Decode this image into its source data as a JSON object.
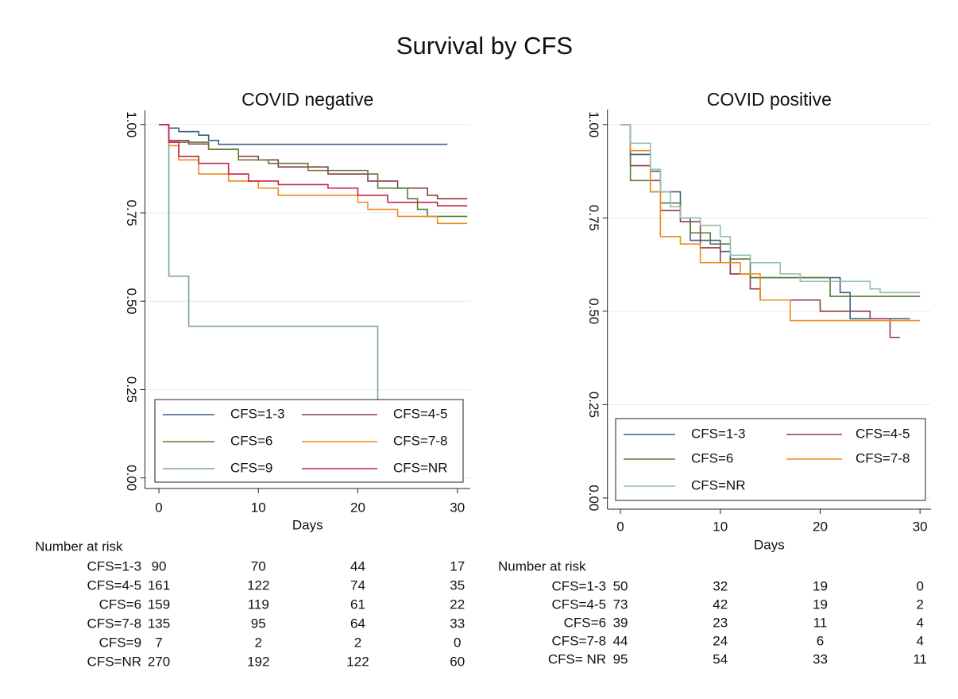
{
  "title": "Survival by CFS",
  "chart_data": [
    {
      "type": "line",
      "title": "COVID negative",
      "xlabel": "Days",
      "xlim": [
        -1.4,
        31.3
      ],
      "xticks": [
        0,
        10,
        20,
        30
      ],
      "ylim": [
        -0.03,
        1.04
      ],
      "yticks": [
        {
          "value": 0,
          "label": "0.00"
        },
        {
          "value": 0.25,
          "label": "0.25"
        },
        {
          "value": 0.5,
          "label": "0.50"
        },
        {
          "value": 0.75,
          "label": "0.75"
        },
        {
          "value": 1,
          "label": "1.00"
        }
      ],
      "grid": true,
      "legend": "bottom",
      "series": [
        {
          "name": "CFS=1-3",
          "color": "#3b5d85",
          "x": [
            0,
            1,
            1,
            2,
            2,
            4,
            4,
            5,
            5,
            6,
            6,
            29
          ],
          "values": [
            1,
            1,
            0.99,
            0.99,
            0.98,
            0.98,
            0.97,
            0.97,
            0.955,
            0.955,
            0.944,
            0.944
          ]
        },
        {
          "name": "CFS=4-5",
          "color": "#903a46",
          "x": [
            0,
            1,
            1,
            3,
            3,
            5,
            5,
            8,
            8,
            10,
            10,
            12,
            12,
            17,
            17,
            21,
            21,
            24,
            24,
            27,
            27,
            28,
            28,
            31
          ],
          "values": [
            1,
            1,
            0.955,
            0.955,
            0.945,
            0.945,
            0.93,
            0.93,
            0.91,
            0.91,
            0.9,
            0.9,
            0.88,
            0.88,
            0.86,
            0.86,
            0.84,
            0.84,
            0.82,
            0.82,
            0.8,
            0.8,
            0.79,
            0.79
          ]
        },
        {
          "name": "CFS=6",
          "color": "#5a7d36",
          "x": [
            0,
            1,
            1,
            5,
            5,
            8,
            8,
            11,
            11,
            15,
            15,
            21,
            21,
            22,
            22,
            25,
            25,
            26,
            26,
            27,
            27,
            31
          ],
          "values": [
            1,
            1,
            0.95,
            0.95,
            0.93,
            0.93,
            0.9,
            0.9,
            0.89,
            0.89,
            0.87,
            0.87,
            0.86,
            0.86,
            0.82,
            0.82,
            0.79,
            0.79,
            0.76,
            0.76,
            0.74,
            0.74
          ]
        },
        {
          "name": "CFS=7-8",
          "color": "#ec8c1c",
          "x": [
            0,
            1,
            1,
            2,
            2,
            4,
            4,
            7,
            7,
            10,
            10,
            12,
            12,
            20,
            20,
            21,
            21,
            24,
            24,
            28,
            28,
            31
          ],
          "values": [
            1,
            1,
            0.94,
            0.94,
            0.9,
            0.9,
            0.86,
            0.86,
            0.84,
            0.84,
            0.82,
            0.82,
            0.8,
            0.8,
            0.78,
            0.78,
            0.76,
            0.76,
            0.74,
            0.74,
            0.72,
            0.72
          ]
        },
        {
          "name": "CFS=9",
          "color": "#7aa59a",
          "x": [
            0,
            1,
            1,
            3,
            3,
            22,
            22
          ],
          "values": [
            1,
            1,
            0.571,
            0.571,
            0.429,
            0.429,
            0
          ]
        },
        {
          "name": "CFS=NR",
          "color": "#c8234b",
          "x": [
            0,
            1,
            1,
            2,
            2,
            4,
            4,
            7,
            7,
            9,
            9,
            12,
            12,
            17,
            17,
            20,
            20,
            23,
            23,
            28,
            28,
            31
          ],
          "values": [
            1,
            1,
            0.95,
            0.95,
            0.91,
            0.91,
            0.89,
            0.89,
            0.86,
            0.86,
            0.84,
            0.84,
            0.83,
            0.83,
            0.82,
            0.82,
            0.8,
            0.8,
            0.78,
            0.78,
            0.77,
            0.77
          ]
        }
      ],
      "risk_table": {
        "title": "Number at risk",
        "rows": [
          {
            "label": "CFS=1-3",
            "values": [
              90,
              70,
              44,
              17
            ]
          },
          {
            "label": "CFS=4-5",
            "values": [
              161,
              122,
              74,
              35
            ]
          },
          {
            "label": "CFS=6",
            "values": [
              159,
              119,
              61,
              22
            ]
          },
          {
            "label": "CFS=7-8",
            "values": [
              135,
              95,
              64,
              33
            ]
          },
          {
            "label": "CFS=9",
            "values": [
              7,
              2,
              2,
              0
            ]
          },
          {
            "label": "CFS=NR",
            "values": [
              270,
              192,
              122,
              60
            ]
          }
        ]
      }
    },
    {
      "type": "line",
      "title": "COVID positive",
      "xlabel": "Days",
      "xlim": [
        -1.3,
        31.1
      ],
      "xticks": [
        0,
        10,
        20,
        30
      ],
      "ylim": [
        -0.03,
        1.04
      ],
      "yticks": [
        {
          "value": 0,
          "label": "0.00"
        },
        {
          "value": 0.25,
          "label": "0.25"
        },
        {
          "value": 0.5,
          "label": "0.50"
        },
        {
          "value": 0.75,
          "label": "0.75"
        },
        {
          "value": 1,
          "label": "1.00"
        }
      ],
      "grid": true,
      "legend": "bottom",
      "series": [
        {
          "name": "CFS=1-3",
          "color": "#3b5d85",
          "x": [
            0,
            1,
            1,
            3,
            3,
            4,
            4,
            6,
            6,
            7,
            7,
            10,
            10,
            11,
            11,
            13,
            13,
            22,
            22,
            23,
            23,
            29
          ],
          "values": [
            1,
            1,
            0.92,
            0.92,
            0.875,
            0.875,
            0.82,
            0.82,
            0.75,
            0.75,
            0.69,
            0.69,
            0.66,
            0.66,
            0.6,
            0.6,
            0.59,
            0.59,
            0.55,
            0.55,
            0.48,
            0.48
          ]
        },
        {
          "name": "CFS=4-5",
          "color": "#903a46",
          "x": [
            0,
            1,
            1,
            3,
            3,
            4,
            4,
            6,
            6,
            8,
            8,
            10,
            10,
            11,
            11,
            13,
            13,
            14,
            14,
            20,
            20,
            25,
            25,
            27,
            27,
            28
          ],
          "values": [
            1,
            1,
            0.89,
            0.89,
            0.85,
            0.85,
            0.77,
            0.77,
            0.74,
            0.74,
            0.67,
            0.67,
            0.63,
            0.63,
            0.6,
            0.6,
            0.56,
            0.56,
            0.53,
            0.53,
            0.5,
            0.5,
            0.48,
            0.48,
            0.43,
            0.43
          ]
        },
        {
          "name": "CFS=6",
          "color": "#5a7d36",
          "x": [
            0,
            1,
            1,
            3,
            3,
            4,
            4,
            6,
            6,
            7,
            7,
            9,
            9,
            11,
            11,
            13,
            13,
            21,
            21,
            30
          ],
          "values": [
            1,
            1,
            0.85,
            0.85,
            0.82,
            0.82,
            0.79,
            0.79,
            0.75,
            0.75,
            0.71,
            0.71,
            0.68,
            0.68,
            0.64,
            0.64,
            0.59,
            0.59,
            0.54,
            0.54
          ]
        },
        {
          "name": "CFS=7-8",
          "color": "#ec8c1c",
          "x": [
            0,
            1,
            1,
            3,
            3,
            4,
            4,
            6,
            6,
            8,
            8,
            12,
            12,
            14,
            14,
            17,
            17,
            30
          ],
          "values": [
            1,
            1,
            0.93,
            0.93,
            0.82,
            0.82,
            0.7,
            0.7,
            0.68,
            0.68,
            0.63,
            0.63,
            0.6,
            0.6,
            0.53,
            0.53,
            0.475,
            0.475
          ]
        },
        {
          "name": "CFS=NR",
          "color": "#93bdb2",
          "x": [
            0,
            1,
            1,
            3,
            3,
            4,
            4,
            5,
            5,
            6,
            6,
            8,
            8,
            10,
            10,
            11,
            11,
            13,
            13,
            16,
            16,
            18,
            18,
            25,
            25,
            26,
            26,
            30
          ],
          "values": [
            1,
            1,
            0.95,
            0.95,
            0.88,
            0.88,
            0.82,
            0.82,
            0.78,
            0.78,
            0.75,
            0.75,
            0.73,
            0.73,
            0.7,
            0.7,
            0.65,
            0.65,
            0.63,
            0.63,
            0.6,
            0.6,
            0.58,
            0.58,
            0.56,
            0.56,
            0.55,
            0.55
          ]
        }
      ],
      "risk_table": {
        "title": "Number at risk",
        "rows": [
          {
            "label": "CFS=1-3",
            "values": [
              50,
              32,
              19,
              0
            ]
          },
          {
            "label": "CFS=4-5",
            "values": [
              73,
              42,
              19,
              2
            ]
          },
          {
            "label": "CFS=6",
            "values": [
              39,
              23,
              11,
              4
            ]
          },
          {
            "label": "CFS=7-8",
            "values": [
              44,
              24,
              6,
              4
            ]
          },
          {
            "label": "CFS= NR",
            "values": [
              95,
              54,
              33,
              11
            ]
          }
        ]
      }
    }
  ]
}
